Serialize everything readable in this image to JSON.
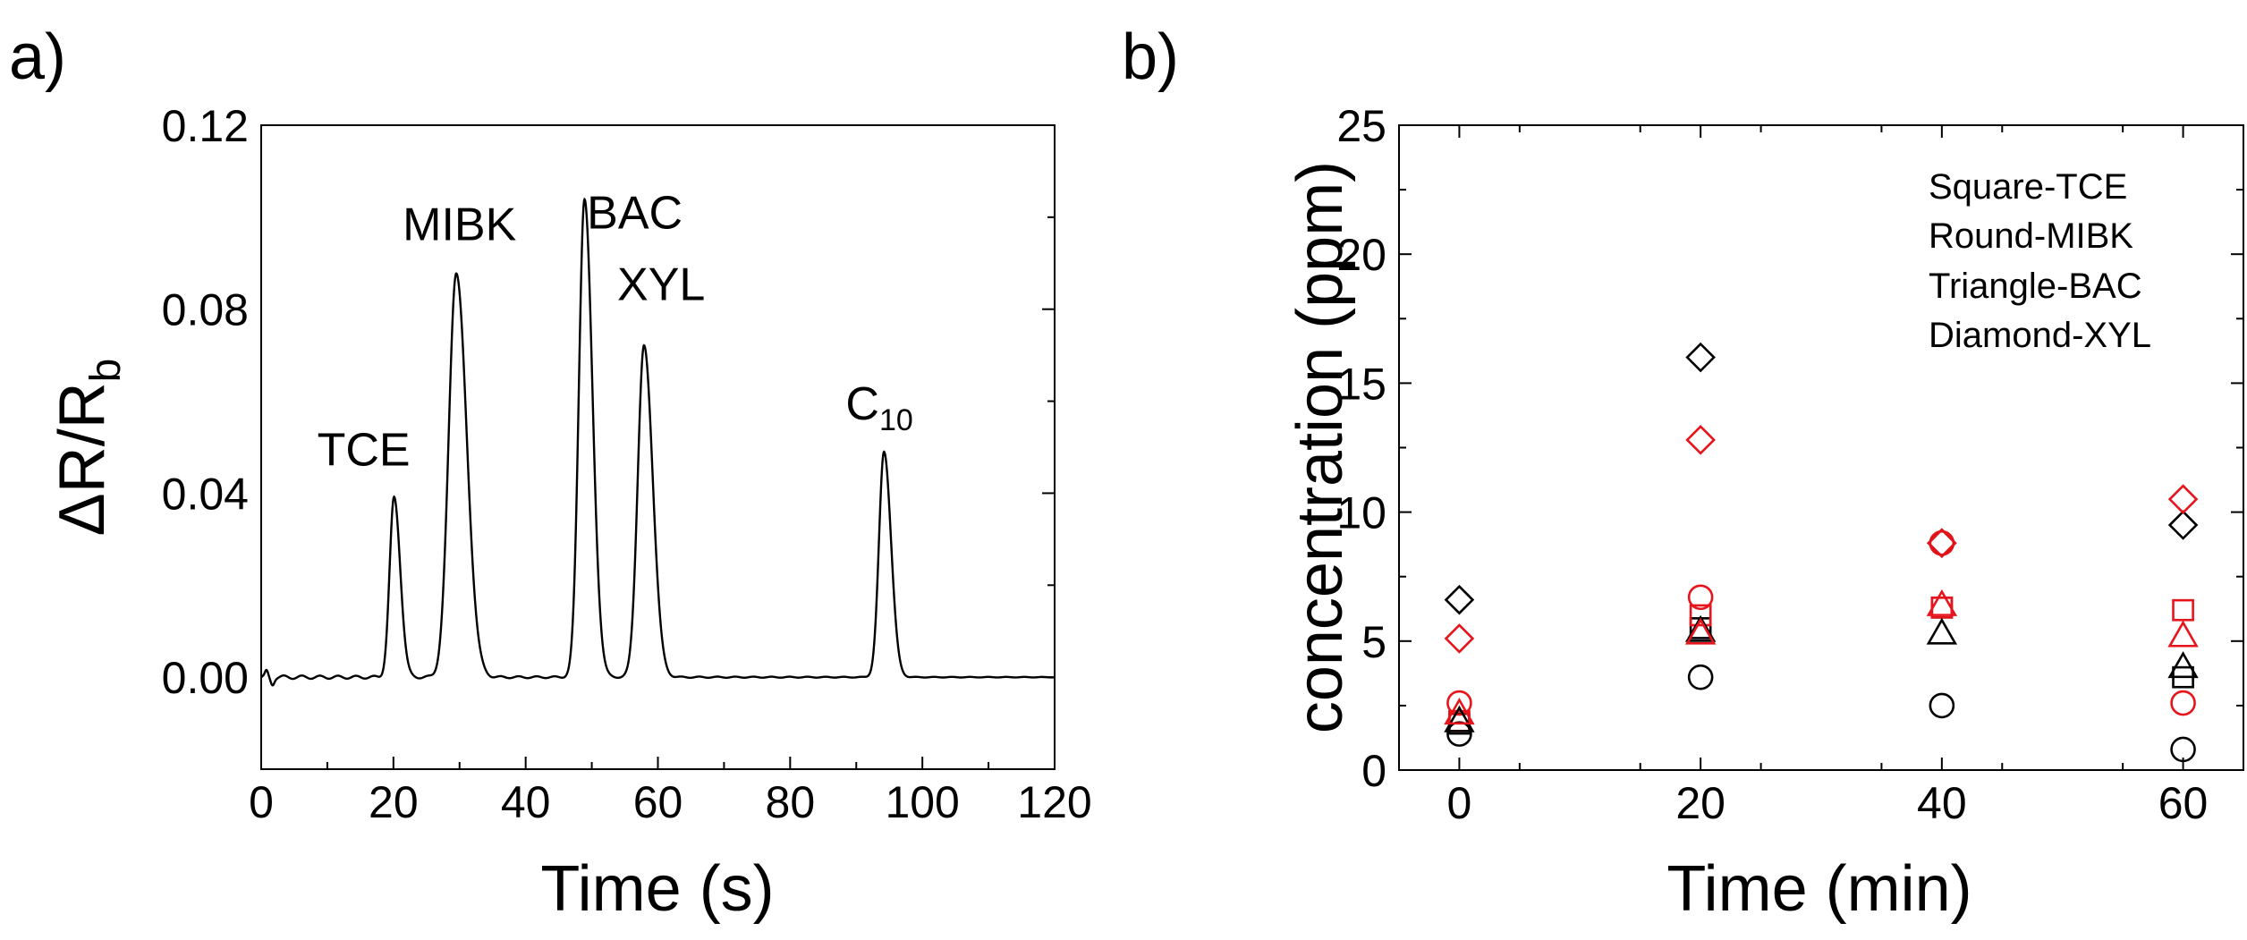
{
  "chart_data": [
    {
      "panel_label": "a)",
      "type": "line",
      "title": "",
      "xlabel": "Time (s)",
      "ylabel_main": "ΔR/R",
      "ylabel_sub": "b",
      "xlim": [
        0,
        120
      ],
      "ylim": [
        -0.02,
        0.12
      ],
      "xticks": [
        0,
        20,
        40,
        60,
        80,
        100,
        120
      ],
      "yticks": [
        0.0,
        0.04,
        0.08,
        0.12
      ],
      "xtick_labels": [
        "0",
        "20",
        "40",
        "60",
        "80",
        "100",
        "120"
      ],
      "ytick_labels": [
        "0.00",
        "0.04",
        "0.08",
        "0.12"
      ],
      "baseline": 0.0,
      "peaks": [
        {
          "label": "TCE",
          "x": 20.1,
          "height": 0.039,
          "sigma": 0.75
        },
        {
          "label": "MIBK",
          "x": 29.5,
          "height": 0.088,
          "sigma": 1.25
        },
        {
          "label": "BAC",
          "x": 48.9,
          "height": 0.104,
          "sigma": 0.95
        },
        {
          "label": "XYL",
          "x": 57.9,
          "height": 0.072,
          "sigma": 1.05
        },
        {
          "label": "C",
          "label_sub": "10",
          "x": 94.2,
          "height": 0.049,
          "sigma": 0.85
        }
      ],
      "annotations": [
        {
          "id": "tce",
          "text": "TCE",
          "sub": "",
          "x": 15.5,
          "y": 0.046
        },
        {
          "id": "mibk",
          "text": "MIBK",
          "sub": "",
          "x": 30.0,
          "y": 0.095
        },
        {
          "id": "bac",
          "text": "BAC",
          "sub": "",
          "x": 56.5,
          "y": 0.0975
        },
        {
          "id": "xyl",
          "text": "XYL",
          "sub": "",
          "x": 60.5,
          "y": 0.082
        },
        {
          "id": "c10",
          "text": "C",
          "sub": "10",
          "x": 93.5,
          "y": 0.056
        }
      ]
    },
    {
      "panel_label": "b)",
      "type": "scatter",
      "title": "",
      "xlabel": "Time (min)",
      "ylabel": "concentration (ppm)",
      "xlim": [
        -5,
        65
      ],
      "ylim": [
        0,
        25
      ],
      "xticks": [
        0,
        20,
        40,
        60
      ],
      "yticks": [
        0,
        5,
        10,
        15,
        20,
        25
      ],
      "xtick_labels": [
        "0",
        "20",
        "40",
        "60"
      ],
      "ytick_labels": [
        "0",
        "5",
        "10",
        "15",
        "20",
        "25"
      ],
      "legend_position": "top-right",
      "legend_entries": [
        "Square-TCE",
        "Round-MIBK",
        "Triangle-BAC",
        "Diamond-XYL"
      ],
      "colors": {
        "black": "#000000",
        "red": "#e8141b"
      },
      "series": [
        {
          "name": "TCE",
          "marker": "square",
          "color": "black",
          "x": [
            0,
            20,
            40,
            60
          ],
          "y": [
            1.8,
            5.5,
            6.3,
            3.6
          ]
        },
        {
          "name": "TCE",
          "marker": "square",
          "color": "red",
          "x": [
            0,
            20,
            40,
            60
          ],
          "y": [
            1.9,
            6.0,
            6.3,
            6.2
          ]
        },
        {
          "name": "MIBK",
          "marker": "circle",
          "color": "black",
          "x": [
            0,
            20,
            40,
            60
          ],
          "y": [
            1.4,
            3.6,
            2.5,
            0.8
          ]
        },
        {
          "name": "MIBK",
          "marker": "circle",
          "color": "red",
          "x": [
            0,
            20,
            40,
            60
          ],
          "y": [
            2.6,
            6.7,
            8.8,
            2.6
          ]
        },
        {
          "name": "BAC",
          "marker": "triangle",
          "color": "black",
          "x": [
            0,
            20,
            40,
            60
          ],
          "y": [
            1.9,
            5.4,
            5.3,
            4.0
          ]
        },
        {
          "name": "BAC",
          "marker": "triangle",
          "color": "red",
          "x": [
            0,
            20,
            40,
            60
          ],
          "y": [
            2.2,
            5.3,
            6.4,
            5.2
          ]
        },
        {
          "name": "XYL",
          "marker": "diamond",
          "color": "black",
          "x": [
            0,
            20,
            40,
            60
          ],
          "y": [
            6.6,
            16.0,
            8.8,
            9.5
          ]
        },
        {
          "name": "XYL",
          "marker": "diamond",
          "color": "red",
          "x": [
            0,
            20,
            40,
            60
          ],
          "y": [
            5.1,
            12.8,
            8.8,
            10.5
          ]
        }
      ]
    }
  ]
}
